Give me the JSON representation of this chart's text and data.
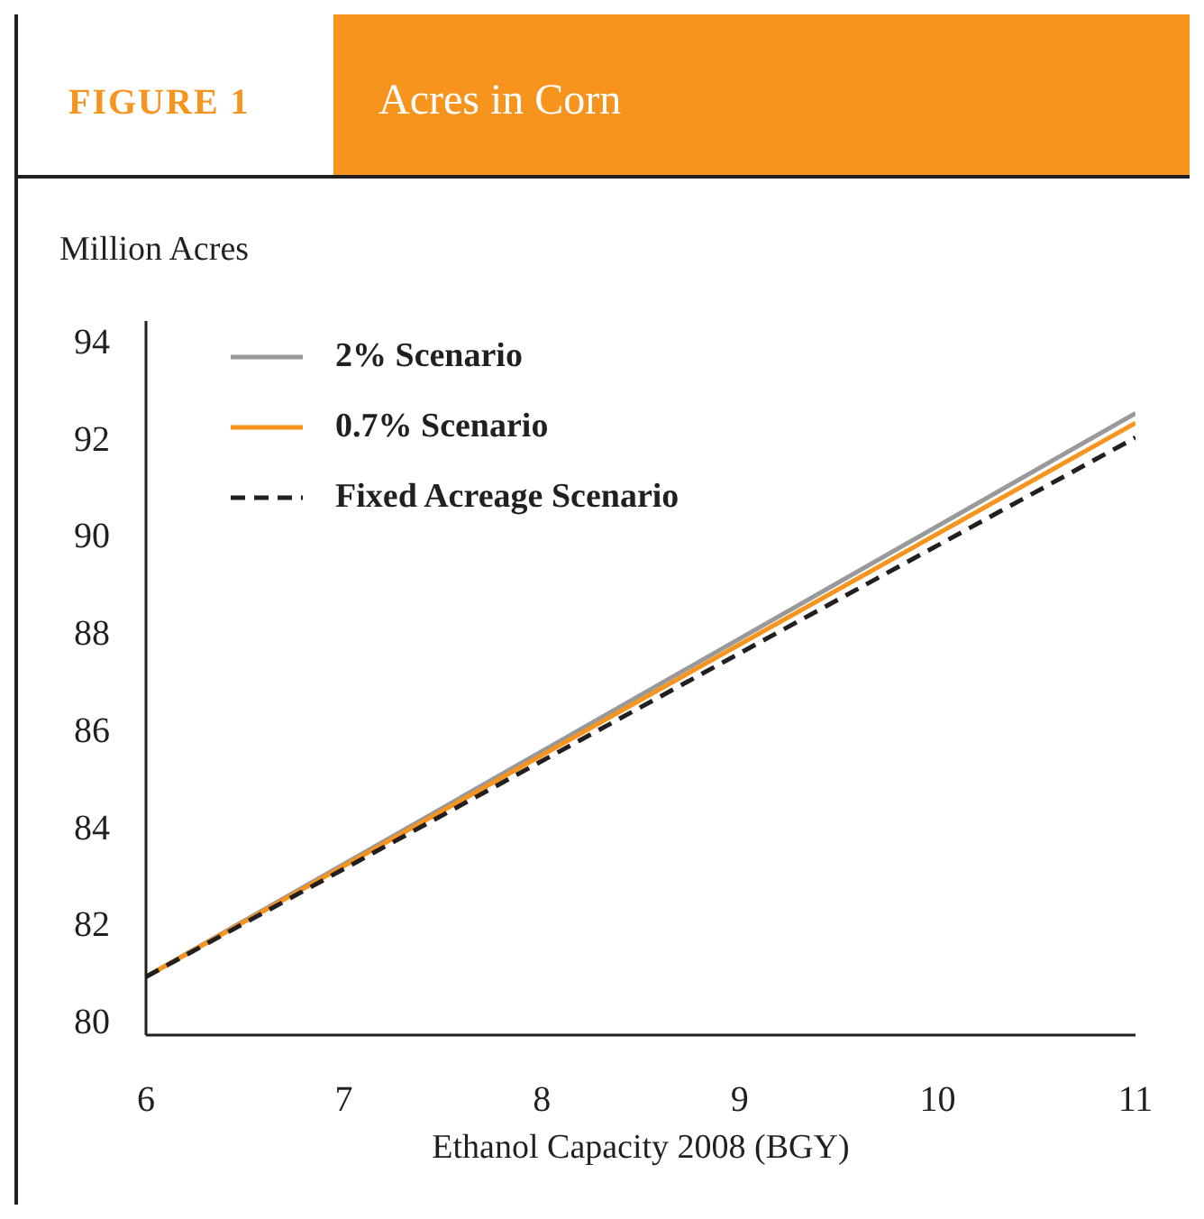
{
  "chart_data": {
    "type": "line",
    "title": "Acres in Corn",
    "annotations": [
      "FIGURE 1"
    ],
    "xlabel": "Ethanol Capacity 2008 (BGY)",
    "ylabel": "Million Acres",
    "x": [
      6,
      11
    ],
    "xlim": [
      6,
      11
    ],
    "xticks": [
      6,
      7,
      8,
      9,
      10,
      11
    ],
    "ylim": [
      79.7,
      94.4
    ],
    "yticks": [
      80,
      82,
      84,
      86,
      88,
      90,
      92,
      94
    ],
    "grid": false,
    "legend": "top left",
    "marker": "none",
    "series": [
      {
        "name": "2% Scenario",
        "color": "#999999",
        "values": [
          80.9,
          92.5
        ],
        "line_style": "solid"
      },
      {
        "name": "0.7% Scenario",
        "color": "#f7941d",
        "values": [
          80.9,
          92.3
        ],
        "line_style": "solid"
      },
      {
        "name": "Fixed Acreage Scenario",
        "color": "#231f20",
        "values": [
          80.9,
          92.0
        ],
        "line_style": "dashed"
      }
    ]
  }
}
